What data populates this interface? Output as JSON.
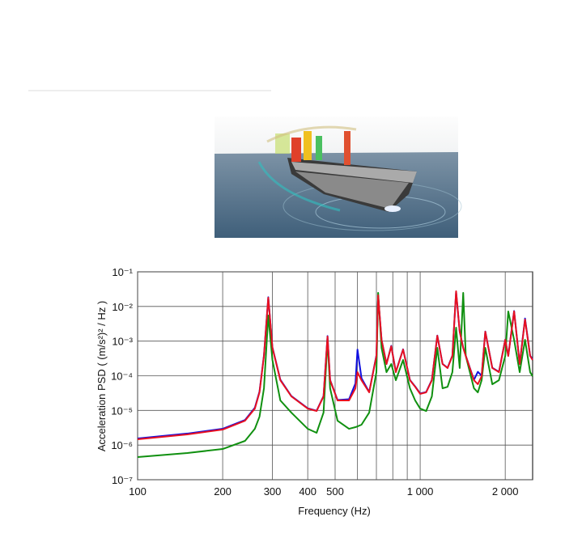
{
  "chart_data": {
    "type": "line",
    "xlabel": "Frequency (Hz)",
    "ylabel": "Acceleration PSD ( (m/s²)² / Hz )",
    "xscale": "log",
    "yscale": "log",
    "grid": true,
    "xlim": [
      100,
      2500
    ],
    "ylim": [
      1e-07,
      0.1
    ],
    "xticks": [
      100,
      200,
      300,
      400,
      500,
      {
        "value": 600,
        "label": null
      },
      {
        "value": 700,
        "label": null
      },
      {
        "value": 800,
        "label": null
      },
      {
        "value": 900,
        "label": null
      },
      {
        "value": 1000,
        "label": "1 000"
      },
      {
        "value": 2000,
        "label": "2 000"
      }
    ],
    "yticks": [
      {
        "value": 1e-07,
        "label": "10⁻⁷"
      },
      {
        "value": 1e-06,
        "label": "10⁻⁶"
      },
      {
        "value": 1e-05,
        "label": "10⁻⁵"
      },
      {
        "value": 0.0001,
        "label": "10⁻⁴"
      },
      {
        "value": 0.001,
        "label": "10⁻³"
      },
      {
        "value": 0.01,
        "label": "10⁻²"
      },
      {
        "value": 0.1,
        "label": "10⁻¹"
      }
    ],
    "x": [
      100,
      150,
      200,
      240,
      260,
      270,
      280,
      290,
      300,
      320,
      350,
      400,
      430,
      455,
      470,
      480,
      510,
      560,
      590,
      600,
      620,
      660,
      700,
      710,
      730,
      760,
      790,
      820,
      870,
      920,
      960,
      1000,
      1050,
      1100,
      1150,
      1200,
      1250,
      1300,
      1340,
      1380,
      1420,
      1450,
      1550,
      1600,
      1650,
      1700,
      1800,
      1900,
      2000,
      2050,
      2150,
      2250,
      2350,
      2450,
      2500
    ],
    "series": [
      {
        "color": "#1010e0",
        "values": [
          1.55e-06,
          2.15e-06,
          2.95e-06,
          5.3e-06,
          1.2e-05,
          3.5e-05,
          0.00039,
          0.0185,
          0.00066,
          7.7e-05,
          2.6e-05,
          1.15e-05,
          9.8e-06,
          2.6e-05,
          0.0014,
          7.6e-05,
          2e-05,
          2.1e-05,
          6e-05,
          0.00057,
          8.5e-05,
          3.4e-05,
          0.00039,
          0.02,
          0.0011,
          0.00022,
          0.00073,
          0.00013,
          0.00058,
          7.6e-05,
          4.9e-05,
          3.1e-05,
          3.4e-05,
          7.6e-05,
          0.00145,
          0.00022,
          0.00017,
          0.00038,
          0.026,
          0.0019,
          0.00065,
          0.00038,
          7.6e-05,
          0.00013,
          0.0001,
          0.0019,
          0.00017,
          0.00013,
          0.0011,
          0.00038,
          0.0074,
          0.00022,
          0.0045,
          0.00038,
          0.0003
        ]
      },
      {
        "color": "#109010",
        "values": [
          4.5e-07,
          5.9e-07,
          7.7e-07,
          1.32e-06,
          2.95e-06,
          6.6e-06,
          4.35e-05,
          0.0055,
          0.000285,
          1.94e-05,
          8.65e-06,
          2.95e-06,
          2.26e-06,
          8.65e-06,
          0.00109,
          4.35e-05,
          5.06e-06,
          2.95e-06,
          3.29e-06,
          3.47e-06,
          3.87e-06,
          8.65e-06,
          0.000127,
          0.0247,
          0.000638,
          0.000127,
          0.000218,
          7.43e-05,
          0.000285,
          4.35e-05,
          1.94e-05,
          1.13e-05,
          9.6e-06,
          2.54e-05,
          0.000638,
          4.35e-05,
          4.8e-05,
          0.000127,
          0.00245,
          0.000167,
          0.0247,
          0.000373,
          4.35e-05,
          3.32e-05,
          7.43e-05,
          0.000638,
          5.7e-05,
          7.43e-05,
          0.000373,
          0.0072,
          0.00109,
          0.000127,
          0.00109,
          0.000127,
          9.7e-05
        ]
      },
      {
        "color": "#e81020",
        "values": [
          1.47e-06,
          2.03e-06,
          2.8e-06,
          5.06e-06,
          1.13e-05,
          3.32e-05,
          0.000373,
          0.0179,
          0.000638,
          7.43e-05,
          2.54e-05,
          1.13e-05,
          9.6e-06,
          2.54e-05,
          0.00136,
          7.43e-05,
          1.94e-05,
          1.94e-05,
          4.35e-05,
          0.000127,
          7.43e-05,
          3.32e-05,
          0.000373,
          0.021,
          0.00109,
          0.000218,
          0.00071,
          0.000127,
          0.00057,
          7.43e-05,
          4.8e-05,
          3e-05,
          3.32e-05,
          7.43e-05,
          0.00143,
          0.000218,
          0.000167,
          0.000373,
          0.0275,
          0.00187,
          0.000638,
          0.000373,
          7.43e-05,
          5.7e-05,
          9.7e-05,
          0.00187,
          0.000167,
          0.000127,
          0.00109,
          0.000373,
          0.0072,
          0.000218,
          0.0042,
          0.000373,
          0.000285
        ]
      }
    ]
  }
}
